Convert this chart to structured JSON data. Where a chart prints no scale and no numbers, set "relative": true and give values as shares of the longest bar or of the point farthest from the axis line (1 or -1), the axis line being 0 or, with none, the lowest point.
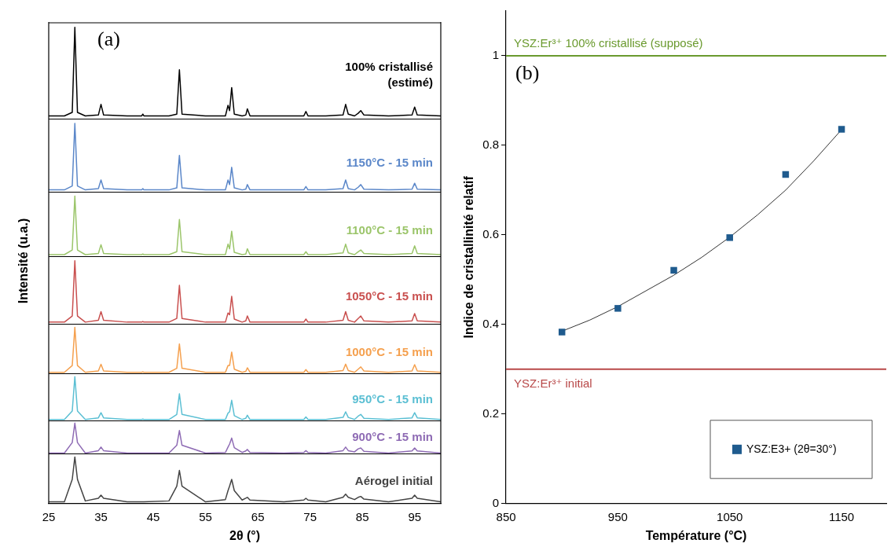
{
  "chart_data": [
    {
      "type": "line",
      "relative": true,
      "tick_labels": false,
      "annotations": [
        "(a)"
      ],
      "xlim": [
        25,
        100
      ],
      "x": [
        25,
        28,
        29.5,
        30,
        30.5,
        32,
        34.5,
        35,
        35.5,
        40,
        42.8,
        43,
        43.2,
        48,
        49.5,
        50,
        50.5,
        55,
        58.8,
        59.3,
        59.6,
        60,
        60.5,
        62,
        62.7,
        63,
        63.5,
        70,
        73.8,
        74.2,
        74.6,
        78,
        81.3,
        81.8,
        82.3,
        83.5,
        84.2,
        84.7,
        85.3,
        90,
        94.5,
        95,
        95.5,
        100
      ],
      "series": [
        {
          "name": "100% cristallisé (estimé)",
          "color": "#000000",
          "values": [
            0,
            0,
            0.04,
            1,
            0.04,
            0,
            0.01,
            0.13,
            0.01,
            0,
            0,
            0.02,
            0,
            0,
            0.02,
            0.52,
            0.02,
            0,
            0,
            0.12,
            0.06,
            0.32,
            0.02,
            0,
            0.01,
            0.08,
            0,
            0,
            0,
            0.05,
            0,
            0,
            0.01,
            0.13,
            0.02,
            0,
            0.03,
            0.06,
            0.01,
            0,
            0.01,
            0.1,
            0.01,
            0
          ]
        }
      ]
    },
    {
      "type": "line",
      "relative": true,
      "tick_labels": false,
      "xlim": [
        25,
        100
      ],
      "x": [
        25,
        28,
        29.5,
        30,
        30.5,
        32,
        34.5,
        35,
        35.5,
        40,
        42.8,
        43,
        43.2,
        48,
        49.5,
        50,
        50.5,
        55,
        58.8,
        59.3,
        59.6,
        60,
        60.5,
        62,
        62.7,
        63,
        63.5,
        70,
        73.8,
        74.2,
        74.6,
        78,
        81.3,
        81.8,
        82.3,
        83.5,
        84.2,
        84.7,
        85.3,
        90,
        94.5,
        95,
        95.5,
        100
      ],
      "series": [
        {
          "name": "1150°C - 15 min",
          "color": "#5b87c9",
          "values": [
            0,
            0,
            0.06,
            1,
            0.06,
            0,
            0.02,
            0.15,
            0.02,
            0,
            0,
            0.02,
            0,
            0,
            0.03,
            0.52,
            0.03,
            0,
            0,
            0.15,
            0.08,
            0.34,
            0.03,
            0,
            0.01,
            0.08,
            0,
            0,
            0,
            0.05,
            0,
            0,
            0.02,
            0.15,
            0.02,
            0,
            0.04,
            0.08,
            0.01,
            0,
            0.01,
            0.1,
            0.01,
            0
          ]
        }
      ]
    },
    {
      "type": "line",
      "relative": true,
      "tick_labels": false,
      "xlim": [
        25,
        100
      ],
      "x": [
        25,
        28,
        29.5,
        30,
        30.5,
        32,
        34.5,
        35,
        35.5,
        40,
        42.8,
        43,
        43.2,
        48,
        49.5,
        50,
        50.5,
        55,
        58.8,
        59.3,
        59.6,
        60,
        60.5,
        62,
        62.7,
        63,
        63.5,
        70,
        73.8,
        74.2,
        74.6,
        78,
        81.3,
        81.8,
        82.3,
        83.5,
        84.2,
        84.7,
        85.3,
        90,
        94.5,
        95,
        95.5,
        100
      ],
      "series": [
        {
          "name": "1100°C - 15 min",
          "color": "#9bc56a",
          "values": [
            0,
            0,
            0.08,
            1,
            0.08,
            0,
            0.02,
            0.17,
            0.02,
            0,
            0,
            0.01,
            0,
            0,
            0.05,
            0.6,
            0.05,
            0,
            0,
            0.18,
            0.1,
            0.4,
            0.04,
            0,
            0.01,
            0.1,
            0,
            0,
            0,
            0.05,
            0,
            0,
            0.03,
            0.18,
            0.03,
            0,
            0.05,
            0.08,
            0.02,
            0,
            0.02,
            0.15,
            0.02,
            0
          ]
        }
      ]
    },
    {
      "type": "line",
      "relative": true,
      "tick_labels": false,
      "ylabel": "Intensité (u.a.)",
      "xlim": [
        25,
        100
      ],
      "x": [
        25,
        28,
        29.5,
        30,
        30.5,
        32,
        34.5,
        35,
        35.5,
        40,
        42.8,
        43,
        43.2,
        48,
        49.5,
        50,
        50.5,
        55,
        58.8,
        59.3,
        59.6,
        60,
        60.5,
        62,
        62.7,
        63,
        63.5,
        70,
        73.8,
        74.2,
        74.6,
        78,
        81.3,
        81.8,
        82.3,
        83.5,
        84.2,
        84.7,
        85.3,
        90,
        94.5,
        95,
        95.5,
        100
      ],
      "series": [
        {
          "name": "1050°C - 15 min",
          "color": "#c9504f",
          "values": [
            0,
            0,
            0.1,
            1,
            0.1,
            0,
            0.03,
            0.17,
            0.03,
            0,
            0,
            0.01,
            0,
            0,
            0.06,
            0.6,
            0.06,
            0,
            0,
            0.15,
            0.12,
            0.42,
            0.05,
            0,
            0.02,
            0.1,
            0,
            0,
            0,
            0.05,
            0,
            0,
            0.03,
            0.17,
            0.03,
            0,
            0.06,
            0.1,
            0.02,
            0,
            0.02,
            0.14,
            0.02,
            0
          ]
        }
      ]
    },
    {
      "type": "line",
      "relative": true,
      "tick_labels": false,
      "xlim": [
        25,
        100
      ],
      "x": [
        25,
        28,
        29.5,
        30,
        30.5,
        32,
        34.5,
        35,
        35.5,
        40,
        42.8,
        43,
        43.2,
        48,
        49.5,
        50,
        50.5,
        55,
        58.8,
        59.3,
        59.6,
        60,
        60.5,
        62,
        62.7,
        63,
        63.5,
        70,
        73.8,
        74.2,
        74.6,
        78,
        81.3,
        81.8,
        82.3,
        83.5,
        84.2,
        84.7,
        85.3,
        90,
        94.5,
        95,
        95.5,
        100
      ],
      "series": [
        {
          "name": "1000°C - 15 min",
          "color": "#f5a04e",
          "values": [
            0,
            0,
            0.15,
            1,
            0.15,
            0,
            0.03,
            0.18,
            0.03,
            0,
            0,
            0.01,
            0,
            0,
            0.09,
            0.63,
            0.09,
            0,
            0,
            0.15,
            0.15,
            0.45,
            0.07,
            0,
            0.02,
            0.1,
            0,
            0,
            0,
            0.06,
            0,
            0,
            0.04,
            0.18,
            0.04,
            0,
            0.07,
            0.12,
            0.03,
            0,
            0.03,
            0.17,
            0.03,
            0
          ]
        }
      ]
    },
    {
      "type": "line",
      "relative": true,
      "tick_labels": false,
      "xlim": [
        25,
        100
      ],
      "x": [
        25,
        28,
        29.5,
        30,
        30.5,
        32,
        34.5,
        35,
        35.5,
        40,
        42.8,
        43,
        43.2,
        48,
        49.5,
        50,
        50.5,
        55,
        58.8,
        59.3,
        59.6,
        60,
        60.5,
        62,
        62.7,
        63,
        63.5,
        70,
        73.8,
        74.2,
        74.6,
        78,
        81.3,
        81.8,
        82.3,
        83.5,
        84.2,
        84.7,
        85.3,
        90,
        94.5,
        95,
        95.5,
        100
      ],
      "series": [
        {
          "name": "950°C - 15 min",
          "color": "#5bbfd3",
          "values": [
            0,
            0,
            0.2,
            1,
            0.2,
            0,
            0.04,
            0.16,
            0.04,
            0,
            0,
            0.01,
            0,
            0,
            0.12,
            0.6,
            0.12,
            0,
            0,
            0.15,
            0.18,
            0.45,
            0.09,
            0,
            0.03,
            0.1,
            0,
            0,
            0,
            0.06,
            0,
            0,
            0.05,
            0.18,
            0.05,
            0,
            0.08,
            0.12,
            0.03,
            0,
            0.04,
            0.16,
            0.04,
            0
          ]
        }
      ]
    },
    {
      "type": "line",
      "relative": true,
      "tick_labels": false,
      "xlim": [
        25,
        100
      ],
      "x": [
        25,
        28,
        29.5,
        30,
        30.5,
        32,
        34.5,
        35,
        35.5,
        40,
        42.8,
        43,
        43.2,
        48,
        49.5,
        50,
        50.5,
        55,
        58.8,
        59.3,
        59.6,
        60,
        60.5,
        62,
        62.7,
        63,
        63.5,
        70,
        73.8,
        74.2,
        74.6,
        78,
        81.3,
        81.8,
        82.3,
        83.5,
        84.2,
        84.7,
        85.3,
        90,
        94.5,
        95,
        95.5,
        100
      ],
      "series": [
        {
          "name": "900°C - 15 min",
          "color": "#8e6bb4",
          "values": [
            0,
            0,
            0.35,
            1,
            0.35,
            0,
            0.08,
            0.2,
            0.08,
            0,
            0,
            0,
            0,
            0,
            0.26,
            0.75,
            0.26,
            0,
            0.02,
            0.2,
            0.3,
            0.5,
            0.18,
            0.02,
            0.07,
            0.12,
            0.02,
            0,
            0.02,
            0.08,
            0.02,
            0,
            0.08,
            0.2,
            0.08,
            0.04,
            0.14,
            0.17,
            0.06,
            0,
            0.07,
            0.17,
            0.07,
            0
          ]
        }
      ]
    },
    {
      "type": "line",
      "relative": true,
      "tick_labels": "x",
      "xlabel": "2θ (°)",
      "xlim": [
        25,
        100
      ],
      "xticks": [
        25,
        35,
        45,
        55,
        65,
        75,
        85,
        95
      ],
      "x": [
        25,
        28,
        29.5,
        30,
        30.5,
        32,
        34.5,
        35,
        35.5,
        40,
        42.8,
        43,
        43.2,
        48,
        49.5,
        50,
        50.5,
        55,
        58.8,
        59.3,
        59.6,
        60,
        60.5,
        62,
        62.7,
        63,
        63.5,
        70,
        73.8,
        74.2,
        74.6,
        78,
        81.3,
        81.8,
        82.3,
        83.5,
        84.2,
        84.7,
        85.3,
        90,
        94.5,
        95,
        95.5,
        100
      ],
      "series": [
        {
          "name": "Aérogel initial",
          "color": "#444444",
          "values": [
            0,
            0,
            0.5,
            1,
            0.5,
            0.02,
            0.08,
            0.15,
            0.08,
            0,
            0,
            0,
            0,
            0.02,
            0.35,
            0.7,
            0.35,
            0,
            0.05,
            0.25,
            0.35,
            0.5,
            0.25,
            0.04,
            0.08,
            0.1,
            0.04,
            0,
            0.04,
            0.08,
            0.04,
            0,
            0.1,
            0.17,
            0.1,
            0.05,
            0.1,
            0.12,
            0.06,
            0,
            0.08,
            0.15,
            0.08,
            0
          ]
        }
      ]
    },
    {
      "type": "scatter",
      "legend": "bottom right",
      "annotations": [
        "(b)"
      ],
      "xlabel": "Température (°C)",
      "ylabel": "Indice de cristallinité relatif",
      "xlim": [
        850,
        1190
      ],
      "xticks": [
        850,
        950,
        1050,
        1150
      ],
      "ylim": [
        0,
        1.1
      ],
      "yticks": [
        0,
        0.2,
        0.4,
        0.6,
        0.8,
        1
      ],
      "ref_lines": [
        {
          "axis": "y",
          "value": 1,
          "label": "YSZ:Er³⁺ 100% cristallisé (supposé)",
          "color": "#6a9a2e"
        },
        {
          "axis": "y",
          "value": 0.3,
          "label": "YSZ:Er³⁺ initial",
          "color": "#b84848"
        }
      ],
      "series": [
        {
          "name": "YSZ:E3+ (2θ=30°)",
          "marker": "square",
          "color": "#1f5b8e",
          "x": [
            900,
            950,
            1000,
            1050,
            1100,
            1150
          ],
          "values": [
            0.383,
            0.436,
            0.521,
            0.594,
            0.735,
            0.836
          ]
        },
        {
          "type": "line",
          "color": "#333333",
          "x": [
            900,
            925,
            950,
            975,
            1000,
            1025,
            1050,
            1075,
            1100,
            1125,
            1150
          ],
          "values": [
            0.385,
            0.41,
            0.44,
            0.475,
            0.51,
            0.55,
            0.595,
            0.645,
            0.7,
            0.765,
            0.835
          ]
        }
      ]
    }
  ]
}
